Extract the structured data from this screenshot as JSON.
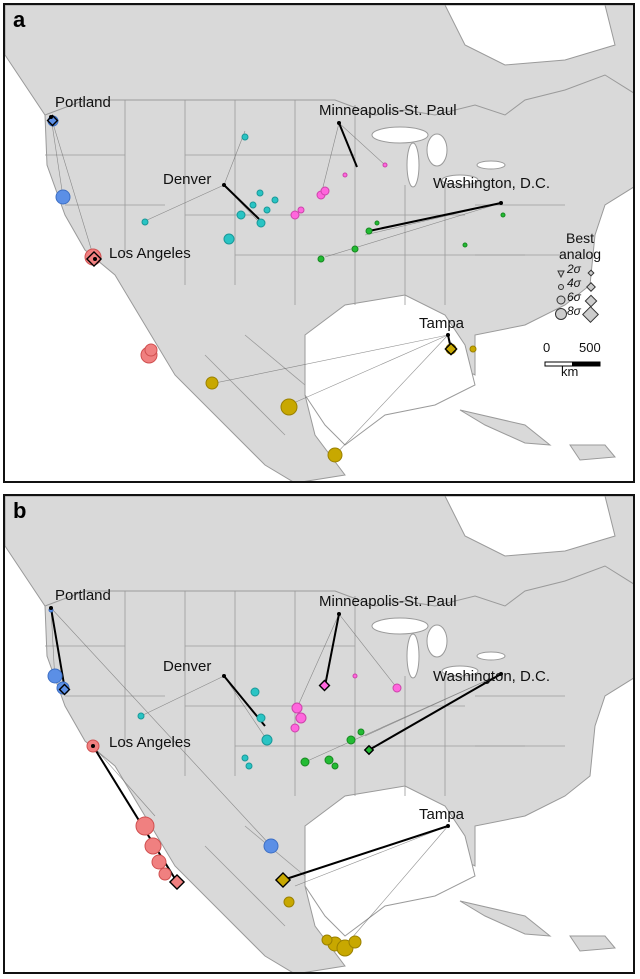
{
  "panels": [
    {
      "letter": "a",
      "cities": {
        "portland": "Portland",
        "minneapolis": "Minneapolis-St. Paul",
        "denver": "Denver",
        "washington": "Washington, D.C.",
        "los_angeles": "Los Angeles",
        "tampa": "Tampa"
      }
    },
    {
      "letter": "b",
      "cities": {
        "portland": "Portland",
        "minneapolis": "Minneapolis-St. Paul",
        "denver": "Denver",
        "washington": "Washington, D.C.",
        "los_angeles": "Los Angeles",
        "tampa": "Tampa"
      }
    }
  ],
  "legend": {
    "title_line1": "Best",
    "title_line2": "analog",
    "entries": [
      "2σ",
      "4σ",
      "6σ",
      "8σ"
    ]
  },
  "scale": {
    "start": "0",
    "end": "500",
    "unit": "km"
  },
  "colors": {
    "portland": "#5b8fe6",
    "los_angeles": "#f08080",
    "denver": "#29c4c4",
    "minneapolis": "#ff66dd",
    "washington": "#22bb33",
    "tampa": "#c8a800",
    "land": "#d9d9d9",
    "water": "#ffffff",
    "border": "#9a9a9a"
  }
}
